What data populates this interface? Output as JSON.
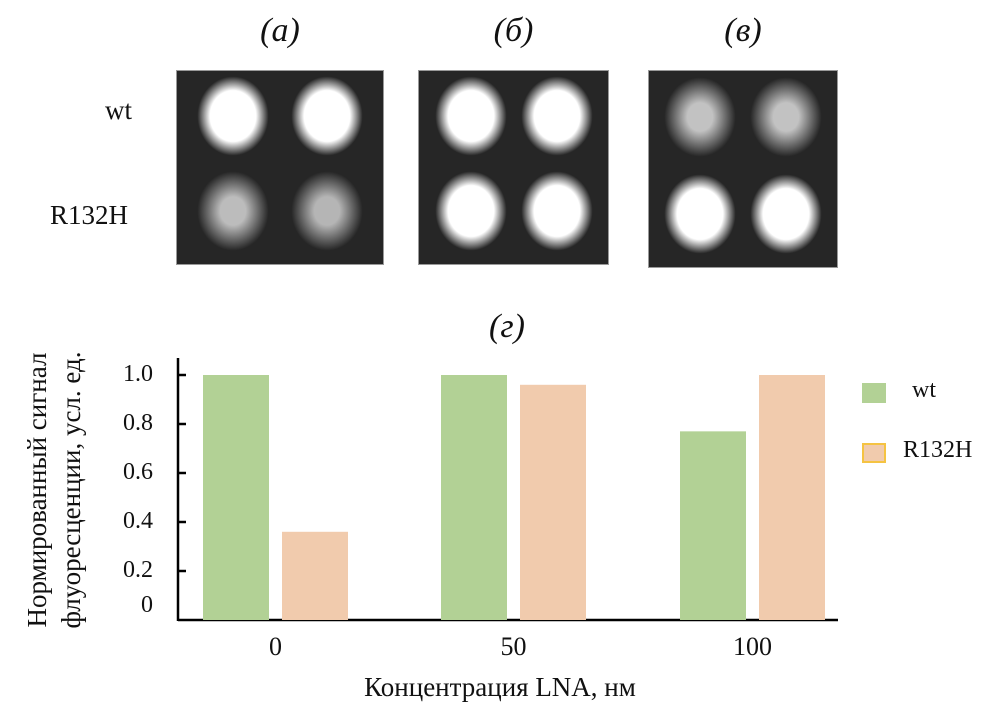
{
  "panels": [
    {
      "label": "(а)",
      "spots": {
        "wt": [
          1.0,
          1.0
        ],
        "R132H": [
          0.5,
          0.45
        ]
      }
    },
    {
      "label": "(б)",
      "spots": {
        "wt": [
          1.0,
          1.0
        ],
        "R132H": [
          1.0,
          1.0
        ]
      }
    },
    {
      "label": "(в)",
      "spots": {
        "wt": [
          0.55,
          0.55
        ],
        "R132H": [
          1.0,
          1.0
        ]
      }
    }
  ],
  "row_labels": [
    "wt",
    "R132H"
  ],
  "chart_data": {
    "type": "bar",
    "title": "(г)",
    "xlabel": "Концентрация LNA, нм",
    "ylabel": [
      "Нормированный сигнал",
      "флуоресценции, усл. ед."
    ],
    "categories": [
      "0",
      "50",
      "100"
    ],
    "series": [
      {
        "name": "wt",
        "values": [
          1.0,
          1.0,
          0.77
        ],
        "color": "#b2d195"
      },
      {
        "name": "R132H",
        "values": [
          0.36,
          0.96,
          1.0
        ],
        "color": "#f1cbad",
        "border": "#f5c342"
      }
    ],
    "yticks": [
      "0",
      "0.2",
      "0.4",
      "0.6",
      "0.8",
      "1.0"
    ],
    "ylim": [
      0,
      1.0
    ],
    "grid": false,
    "legend": "right"
  }
}
